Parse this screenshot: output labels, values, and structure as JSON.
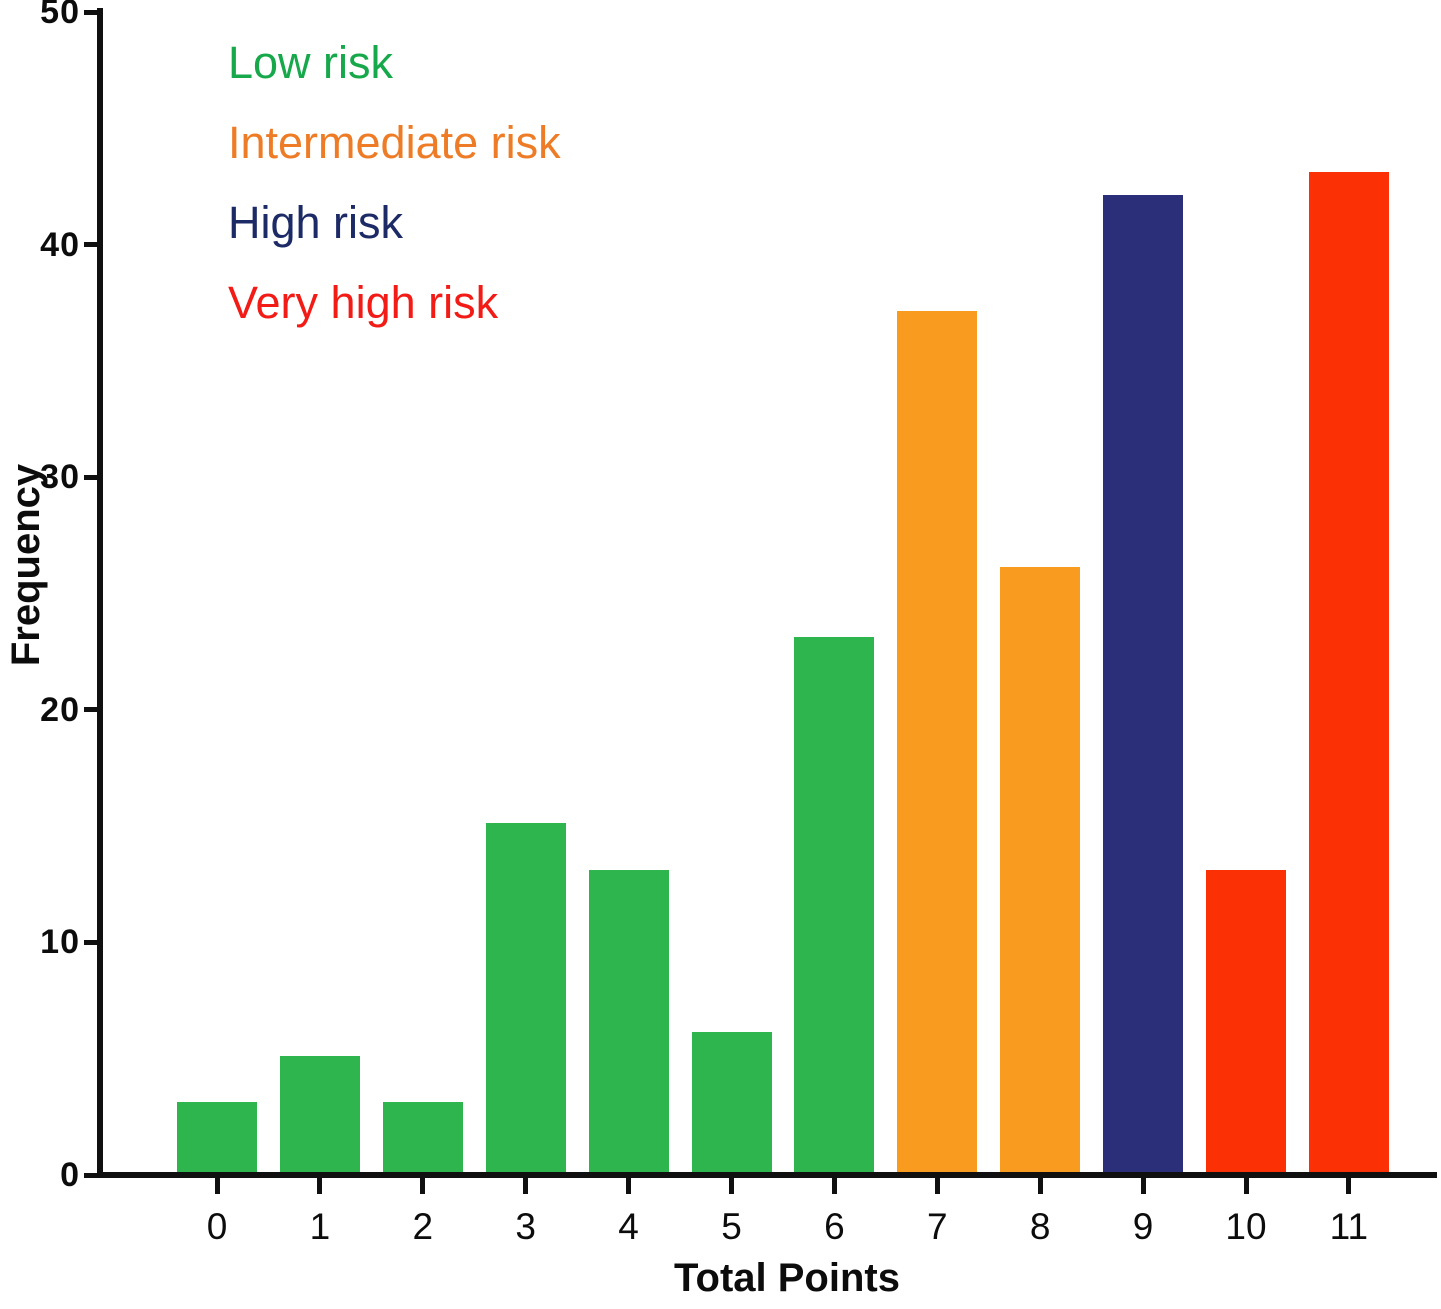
{
  "figure": {
    "background": "#ffffff",
    "axis_color": "#101010"
  },
  "chart_data": {
    "type": "bar",
    "title": "",
    "xlabel": "Total Points",
    "ylabel": "Frequency",
    "categories": [
      "0",
      "1",
      "2",
      "3",
      "4",
      "5",
      "6",
      "7",
      "8",
      "9",
      "10",
      "11"
    ],
    "values": [
      3,
      5,
      3,
      15,
      13,
      6,
      23,
      37,
      26,
      42,
      13,
      43
    ],
    "groups": [
      "low",
      "low",
      "low",
      "low",
      "low",
      "low",
      "low",
      "intermediate",
      "intermediate",
      "high",
      "very_high",
      "very_high"
    ],
    "group_colors": {
      "low": "#2FB54D",
      "intermediate": "#F89B1E",
      "high": "#2B2E78",
      "very_high": "#FB3005"
    },
    "ylim": [
      0,
      50
    ],
    "yticks": [
      0,
      10,
      20,
      30,
      40,
      50
    ],
    "grid": false,
    "legend_position": "top-left",
    "legend": [
      {
        "label": "Low risk",
        "color": "#17A84C"
      },
      {
        "label": "Intermediate risk",
        "color": "#EE7C26"
      },
      {
        "label": "High risk",
        "color": "#1C2A66"
      },
      {
        "label": "Very high risk",
        "color": "#F21B15"
      }
    ]
  }
}
